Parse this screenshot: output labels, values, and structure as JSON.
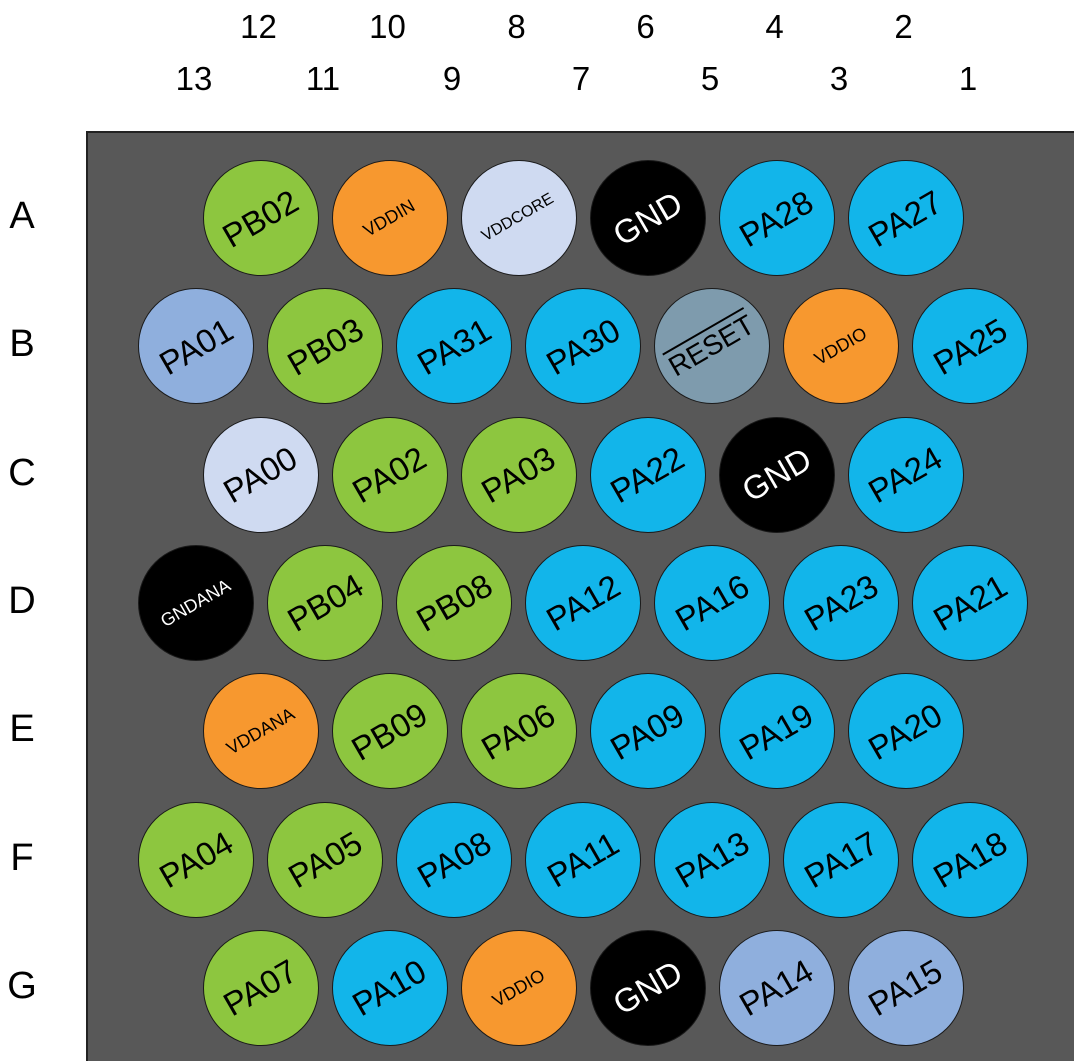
{
  "colors": {
    "green": "#8dc63f",
    "blue": "#12b5ea",
    "lightblue": "#8fafdd",
    "paleblue": "#cfdaf1",
    "orange": "#f7982f",
    "gray": "#7e9bad",
    "black": "#000000",
    "package": "#585858"
  },
  "columns_top": [
    "12",
    "10",
    "8",
    "6",
    "4",
    "2"
  ],
  "columns_bottom": [
    "13",
    "11",
    "9",
    "7",
    "5",
    "3",
    "1"
  ],
  "rows": [
    "A",
    "B",
    "C",
    "D",
    "E",
    "F",
    "G"
  ],
  "balls": [
    {
      "row": "A",
      "col": 12,
      "label": "PB02",
      "color": "green"
    },
    {
      "row": "A",
      "col": 10,
      "label": "VDDIN",
      "color": "orange"
    },
    {
      "row": "A",
      "col": 8,
      "label": "VDDCORE",
      "color": "paleblue"
    },
    {
      "row": "A",
      "col": 6,
      "label": "GND",
      "color": "black"
    },
    {
      "row": "A",
      "col": 4,
      "label": "PA28",
      "color": "blue"
    },
    {
      "row": "A",
      "col": 2,
      "label": "PA27",
      "color": "blue"
    },
    {
      "row": "B",
      "col": 13,
      "label": "PA01",
      "color": "lightblue"
    },
    {
      "row": "B",
      "col": 11,
      "label": "PB03",
      "color": "green"
    },
    {
      "row": "B",
      "col": 9,
      "label": "PA31",
      "color": "blue"
    },
    {
      "row": "B",
      "col": 7,
      "label": "PA30",
      "color": "blue"
    },
    {
      "row": "B",
      "col": 5,
      "label": "RESET",
      "color": "gray"
    },
    {
      "row": "B",
      "col": 3,
      "label": "VDDIO",
      "color": "orange"
    },
    {
      "row": "B",
      "col": 1,
      "label": "PA25",
      "color": "blue"
    },
    {
      "row": "C",
      "col": 12,
      "label": "PA00",
      "color": "paleblue"
    },
    {
      "row": "C",
      "col": 10,
      "label": "PA02",
      "color": "green"
    },
    {
      "row": "C",
      "col": 8,
      "label": "PA03",
      "color": "green"
    },
    {
      "row": "C",
      "col": 6,
      "label": "PA22",
      "color": "blue"
    },
    {
      "row": "C",
      "col": 4,
      "label": "GND",
      "color": "black"
    },
    {
      "row": "C",
      "col": 2,
      "label": "PA24",
      "color": "blue"
    },
    {
      "row": "D",
      "col": 13,
      "label": "GNDANA",
      "color": "black"
    },
    {
      "row": "D",
      "col": 11,
      "label": "PB04",
      "color": "green"
    },
    {
      "row": "D",
      "col": 9,
      "label": "PB08",
      "color": "green"
    },
    {
      "row": "D",
      "col": 7,
      "label": "PA12",
      "color": "blue"
    },
    {
      "row": "D",
      "col": 5,
      "label": "PA16",
      "color": "blue"
    },
    {
      "row": "D",
      "col": 3,
      "label": "PA23",
      "color": "blue"
    },
    {
      "row": "D",
      "col": 1,
      "label": "PA21",
      "color": "blue"
    },
    {
      "row": "E",
      "col": 12,
      "label": "VDDANA",
      "color": "orange"
    },
    {
      "row": "E",
      "col": 10,
      "label": "PB09",
      "color": "green"
    },
    {
      "row": "E",
      "col": 8,
      "label": "PA06",
      "color": "green"
    },
    {
      "row": "E",
      "col": 6,
      "label": "PA09",
      "color": "blue"
    },
    {
      "row": "E",
      "col": 4,
      "label": "PA19",
      "color": "blue"
    },
    {
      "row": "E",
      "col": 2,
      "label": "PA20",
      "color": "blue"
    },
    {
      "row": "F",
      "col": 13,
      "label": "PA04",
      "color": "green"
    },
    {
      "row": "F",
      "col": 11,
      "label": "PA05",
      "color": "green"
    },
    {
      "row": "F",
      "col": 9,
      "label": "PA08",
      "color": "blue"
    },
    {
      "row": "F",
      "col": 7,
      "label": "PA11",
      "color": "blue"
    },
    {
      "row": "F",
      "col": 5,
      "label": "PA13",
      "color": "blue"
    },
    {
      "row": "F",
      "col": 3,
      "label": "PA17",
      "color": "blue"
    },
    {
      "row": "F",
      "col": 1,
      "label": "PA18",
      "color": "blue"
    },
    {
      "row": "G",
      "col": 12,
      "label": "PA07",
      "color": "green"
    },
    {
      "row": "G",
      "col": 10,
      "label": "PA10",
      "color": "blue"
    },
    {
      "row": "G",
      "col": 8,
      "label": "VDDIO",
      "color": "orange"
    },
    {
      "row": "G",
      "col": 6,
      "label": "GND",
      "color": "black"
    },
    {
      "row": "G",
      "col": 4,
      "label": "PA14",
      "color": "lightblue"
    },
    {
      "row": "G",
      "col": 2,
      "label": "PA15",
      "color": "lightblue"
    }
  ]
}
